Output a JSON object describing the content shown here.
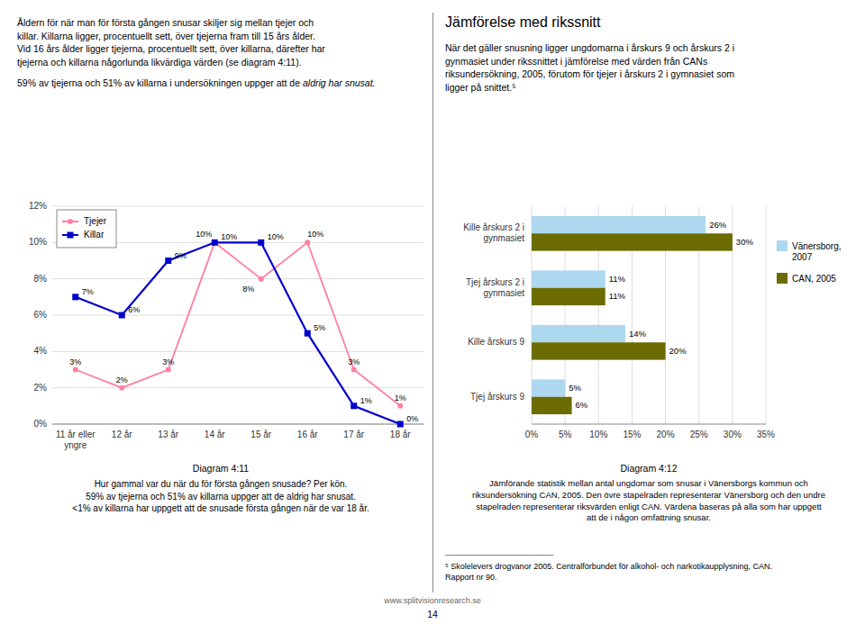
{
  "left_text_para1": "Åldern för när man för första gången snusar skiljer sig mellan tjejer och\nkillar. Killarna ligger, procentuellt sett, över tjejerna fram till 15 års ålder.\nVid 16 års ålder ligger tjejerna, procentuellt sett, över killarna, därefter har\ntjejerna och killarna någorlunda likvärdiga värden (se diagram 4:11).",
  "left_text_para2": "59% av tjejerna och 51% av killarna i undersökningen uppger att de ",
  "left_text_para2_italic": "aldrig har snusat.",
  "right_title": "Jämförelse med rikssnitt",
  "right_text": "När det gäller snusning ligger ungdomarna i årskurs 9 och årskurs 2 i\ngynmasiet under rikssnittet i jämförelse med värden från CANs\nriksundersökning, 2005, förutom för tjejer i årskurs 2 i gymnasiet som\nligger på snittet.⁵",
  "footnote_line": "___________________________",
  "footnote_text": "⁵ Skolelevers drogvanor 2005. Centralförbundet för alkohol- och narkotikaupplysning, CAN.\nRapport nr 90.",
  "footer_url": "www.splitvisionresearch.se",
  "page_number": "14",
  "chart_data": [
    {
      "type": "line",
      "title": "Diagram 4:11",
      "caption": [
        "Hur gammal var du när du för första gången snusade? Per kön.",
        "59% av tjejerna och 51% av killarna uppger att de aldrig har snusat.",
        "<1% av killarna har uppgett att de snusade första gången när de var 18 år."
      ],
      "categories": [
        "11 år eller\nyngre",
        "12 år",
        "13 år",
        "14 år",
        "15 år",
        "16 år",
        "17 år",
        "18 år"
      ],
      "series": [
        {
          "name": "Tjejer",
          "color": "#ff80a0",
          "marker": "circle",
          "line_style": "solid",
          "values": [
            3,
            2,
            3,
            10,
            8,
            10,
            3,
            1
          ],
          "value_labels": [
            "3%",
            "2%",
            "3%",
            "10%",
            "8%",
            "10%",
            "3%",
            "1%"
          ]
        },
        {
          "name": "Killar",
          "color": "#0000cc",
          "marker": "square",
          "line_style": "solid",
          "values": [
            7,
            6,
            9,
            10,
            10,
            5,
            1,
            0
          ],
          "value_labels": [
            "7%",
            "6%",
            "9%",
            "10%",
            "10%",
            "5%",
            "1%",
            "0%"
          ]
        }
      ],
      "ylim": [
        0,
        12
      ],
      "yticks": [
        {
          "value": 0,
          "label": "0%"
        },
        {
          "value": 2,
          "label": "2%"
        },
        {
          "value": 4,
          "label": "4%"
        },
        {
          "value": 6,
          "label": "6%"
        },
        {
          "value": 8,
          "label": "8%"
        },
        {
          "value": 10,
          "label": "10%"
        },
        {
          "value": 12,
          "label": "12%"
        }
      ],
      "grid": true,
      "legend": "upper left",
      "data_labels": true
    },
    {
      "type": "bar",
      "orientation": "horizontal",
      "title": "Diagram 4:12",
      "caption": [
        "Jämförande statistik mellan antal ungdomar som snusar i Vänersborgs kommun och",
        "riksundersökning CAN, 2005. Den övre stapelraden representerar Vänersborg och den undre",
        "stapelraden representerar riksvärden enligt CAN. Värdena baseras på alla som har uppgett",
        "att de i någon omfattning snusar."
      ],
      "categories": [
        "Kille årskurs 2 i\ngynmasiet",
        "Tjej årskurs 2 i\ngynmasiet",
        "Kille årskurs 9",
        "Tjej årskurs 9"
      ],
      "series": [
        {
          "name": "Vänersborg,\n2007",
          "color": "#add8f0",
          "values": [
            26,
            11,
            14,
            5
          ],
          "value_labels": [
            "26%",
            "11%",
            "14%",
            "5%"
          ]
        },
        {
          "name": "CAN, 2005",
          "color": "#6b6b00",
          "values": [
            30,
            11,
            20,
            6
          ],
          "value_labels": [
            "30%",
            "11%",
            "20%",
            "6%"
          ]
        }
      ],
      "xlim": [
        0,
        35
      ],
      "xticks": [
        {
          "value": 0,
          "label": "0%"
        },
        {
          "value": 5,
          "label": "5%"
        },
        {
          "value": 10,
          "label": "10%"
        },
        {
          "value": 15,
          "label": "15%"
        },
        {
          "value": 20,
          "label": "20%"
        },
        {
          "value": 25,
          "label": "25%"
        },
        {
          "value": 30,
          "label": "30%"
        },
        {
          "value": 35,
          "label": "35%"
        }
      ],
      "grid": true,
      "legend": "right",
      "data_labels": true
    }
  ]
}
